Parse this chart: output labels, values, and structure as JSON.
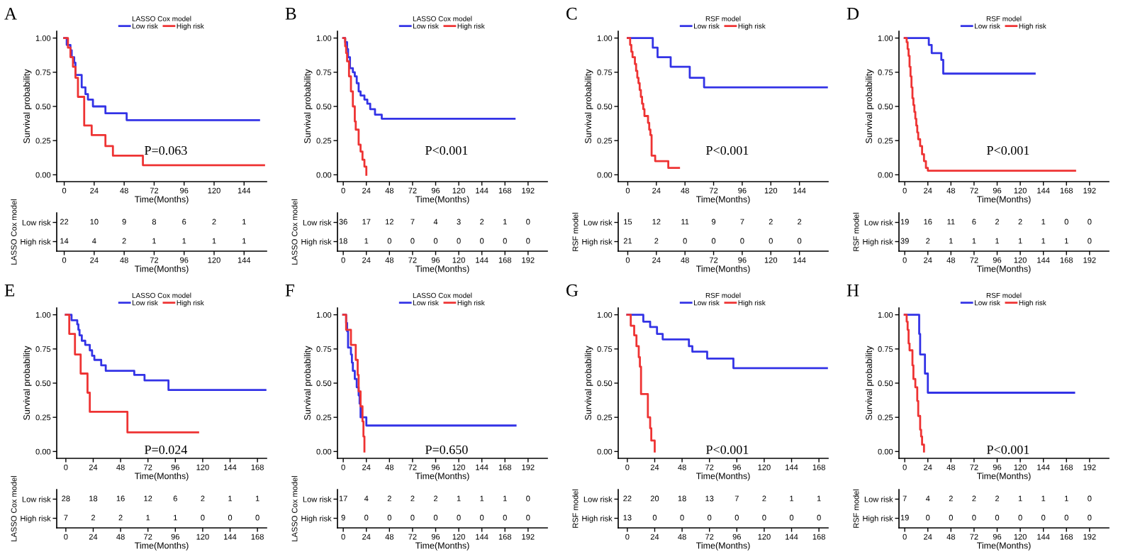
{
  "chart_data": [
    {
      "type": "step",
      "title": "A",
      "legend_title": "LASSO Cox model",
      "legend": "top",
      "xlabel": "Time(Months)",
      "ylabel": "Survival probability",
      "xlim": [
        -6,
        162
      ],
      "xticks": [
        0,
        24,
        48,
        72,
        96,
        120,
        144
      ],
      "ylim": [
        -0.05,
        1.05
      ],
      "yticks": [
        {
          "value": 0,
          "label": "0.00"
        },
        {
          "value": 0.25,
          "label": "0.25"
        },
        {
          "value": 0.5,
          "label": "0.50"
        },
        {
          "value": 0.75,
          "label": "0.75"
        },
        {
          "value": 1,
          "label": "1.00"
        }
      ],
      "annotations": [
        "P=0.063"
      ],
      "series": [
        {
          "name": "Low risk",
          "color": "#3333e6",
          "x": [
            0,
            2,
            5,
            6,
            8,
            9,
            14,
            17,
            19,
            23,
            33,
            50,
            156
          ],
          "values": [
            1,
            0.95,
            0.91,
            0.86,
            0.82,
            0.73,
            0.64,
            0.59,
            0.55,
            0.5,
            0.45,
            0.4,
            0.4
          ]
        },
        {
          "name": "High risk",
          "color": "#ee3333",
          "x": [
            0,
            3,
            5,
            7,
            9,
            11,
            16,
            22,
            33,
            39,
            63,
            160
          ],
          "values": [
            1,
            0.93,
            0.86,
            0.79,
            0.71,
            0.57,
            0.36,
            0.29,
            0.21,
            0.14,
            0.07,
            0.07
          ]
        }
      ]
    },
    {
      "type": "heatmap",
      "data_labels": true,
      "xlabel": "Time(Months)",
      "ylabel": "LASSO Cox model",
      "categories": [
        "0",
        "24",
        "48",
        "72",
        "96",
        "120",
        "144"
      ],
      "y_categories": [
        "Low risk",
        "High risk"
      ],
      "cells": [
        [
          22,
          10,
          9,
          8,
          6,
          2,
          1
        ],
        [
          14,
          4,
          2,
          1,
          1,
          1,
          1
        ]
      ]
    },
    {
      "type": "step",
      "title": "B",
      "legend_title": "LASSO Cox model",
      "legend": "top",
      "xlabel": "Time(Months)",
      "ylabel": "Survival probability",
      "xlim": [
        -6,
        212
      ],
      "xticks": [
        0,
        24,
        48,
        72,
        96,
        120,
        144,
        168,
        192
      ],
      "ylim": [
        -0.05,
        1.05
      ],
      "yticks": [
        {
          "value": 0,
          "label": "0.00"
        },
        {
          "value": 0.25,
          "label": "0.25"
        },
        {
          "value": 0.5,
          "label": "0.50"
        },
        {
          "value": 0.75,
          "label": "0.75"
        },
        {
          "value": 1,
          "label": "1.00"
        }
      ],
      "annotations": [
        "P<0.001"
      ],
      "series": [
        {
          "name": "Low risk",
          "color": "#3333e6",
          "x": [
            0,
            2,
            4,
            5,
            7,
            10,
            12,
            14,
            16,
            18,
            22,
            25,
            28,
            33,
            40,
            178
          ],
          "values": [
            1,
            0.97,
            0.92,
            0.86,
            0.78,
            0.75,
            0.72,
            0.67,
            0.61,
            0.58,
            0.55,
            0.52,
            0.48,
            0.44,
            0.41,
            0.41
          ]
        },
        {
          "name": "High risk",
          "color": "#ee3333",
          "x": [
            0,
            2,
            3,
            4,
            6,
            8,
            10,
            12,
            13,
            16,
            18,
            20,
            22,
            24
          ],
          "values": [
            1,
            0.94,
            0.89,
            0.83,
            0.72,
            0.61,
            0.5,
            0.39,
            0.33,
            0.22,
            0.17,
            0.11,
            0.06,
            0
          ]
        }
      ]
    },
    {
      "type": "heatmap",
      "data_labels": true,
      "xlabel": "Time(Months)",
      "ylabel": "LASSO Cox model",
      "categories": [
        "0",
        "24",
        "48",
        "72",
        "96",
        "120",
        "144",
        "168",
        "192"
      ],
      "y_categories": [
        "Low risk",
        "High risk"
      ],
      "cells": [
        [
          36,
          17,
          12,
          7,
          4,
          3,
          2,
          1,
          0
        ],
        [
          18,
          1,
          0,
          0,
          0,
          0,
          0,
          0,
          0
        ]
      ]
    },
    {
      "type": "step",
      "title": "C",
      "legend_title": "RSF model",
      "legend": "top",
      "xlabel": "Time(Months)",
      "ylabel": "Survival probability",
      "xlim": [
        -8,
        168
      ],
      "xticks": [
        0,
        24,
        48,
        72,
        96,
        120,
        144
      ],
      "ylim": [
        -0.05,
        1.05
      ],
      "yticks": [
        {
          "value": 0,
          "label": "0.00"
        },
        {
          "value": 0.25,
          "label": "0.25"
        },
        {
          "value": 0.5,
          "label": "0.50"
        },
        {
          "value": 0.75,
          "label": "0.75"
        },
        {
          "value": 1,
          "label": "1.00"
        }
      ],
      "annotations": [
        "P<0.001"
      ],
      "series": [
        {
          "name": "Low risk",
          "color": "#3333e6",
          "x": [
            0,
            21,
            25,
            36,
            52,
            64,
            167
          ],
          "values": [
            1,
            0.93,
            0.86,
            0.79,
            0.71,
            0.64,
            0.64
          ]
        },
        {
          "name": "High risk",
          "color": "#ee3333",
          "x": [
            0,
            2,
            3,
            4,
            6,
            7,
            8,
            9,
            10,
            11,
            12,
            13,
            14,
            17,
            18,
            19,
            20,
            23,
            34,
            43
          ],
          "values": [
            1,
            0.95,
            0.9,
            0.86,
            0.81,
            0.76,
            0.71,
            0.67,
            0.62,
            0.57,
            0.52,
            0.48,
            0.43,
            0.38,
            0.33,
            0.29,
            0.14,
            0.1,
            0.05,
            0.05
          ]
        }
      ]
    },
    {
      "type": "heatmap",
      "data_labels": true,
      "xlabel": "Time(Months)",
      "ylabel": "RSF model",
      "categories": [
        "0",
        "24",
        "48",
        "72",
        "96",
        "120",
        "144"
      ],
      "y_categories": [
        "Low risk",
        "High risk"
      ],
      "cells": [
        [
          15,
          12,
          11,
          9,
          7,
          2,
          2
        ],
        [
          21,
          2,
          0,
          0,
          0,
          0,
          0
        ]
      ]
    },
    {
      "type": "step",
      "title": "D",
      "legend_title": "RSF model",
      "legend": "top",
      "xlabel": "Time(Months)",
      "ylabel": "Survival probability",
      "xlim": [
        -6,
        212
      ],
      "xticks": [
        0,
        24,
        48,
        72,
        96,
        120,
        144,
        168,
        192
      ],
      "ylim": [
        -0.05,
        1.05
      ],
      "yticks": [
        {
          "value": 0,
          "label": "0.00"
        },
        {
          "value": 0.25,
          "label": "0.25"
        },
        {
          "value": 0.5,
          "label": "0.50"
        },
        {
          "value": 0.75,
          "label": "0.75"
        },
        {
          "value": 1,
          "label": "1.00"
        }
      ],
      "annotations": [
        "P<0.001"
      ],
      "series": [
        {
          "name": "Low risk",
          "color": "#3333e6",
          "x": [
            0,
            25,
            28,
            38,
            40,
            135
          ],
          "values": [
            1,
            0.95,
            0.89,
            0.84,
            0.74,
            0.74
          ]
        },
        {
          "name": "High risk",
          "color": "#ee3333",
          "x": [
            0,
            2,
            3,
            4,
            5,
            6,
            7,
            8,
            9,
            10,
            11,
            12,
            13,
            14,
            16,
            18,
            20,
            22,
            24,
            177
          ],
          "values": [
            1,
            0.97,
            0.92,
            0.87,
            0.79,
            0.72,
            0.64,
            0.56,
            0.51,
            0.46,
            0.41,
            0.36,
            0.31,
            0.26,
            0.21,
            0.15,
            0.1,
            0.05,
            0.03,
            0.03
          ]
        }
      ]
    },
    {
      "type": "heatmap",
      "data_labels": true,
      "xlabel": "Time(Months)",
      "ylabel": "RSF model",
      "categories": [
        "0",
        "24",
        "48",
        "72",
        "96",
        "120",
        "144",
        "168",
        "192"
      ],
      "y_categories": [
        "Low risk",
        "High risk"
      ],
      "cells": [
        [
          19,
          16,
          11,
          6,
          2,
          2,
          1,
          0,
          0
        ],
        [
          39,
          2,
          1,
          1,
          1,
          1,
          1,
          1,
          0
        ]
      ]
    },
    {
      "type": "step",
      "title": "E",
      "legend_title": "LASSO Cox model",
      "legend": "top",
      "xlabel": "Time(Months)",
      "ylabel": "Survival probability",
      "xlim": [
        -8,
        176
      ],
      "xticks": [
        0,
        24,
        48,
        72,
        96,
        120,
        144,
        168
      ],
      "ylim": [
        -0.05,
        1.05
      ],
      "yticks": [
        {
          "value": 0,
          "label": "0.00"
        },
        {
          "value": 0.25,
          "label": "0.25"
        },
        {
          "value": 0.5,
          "label": "0.50"
        },
        {
          "value": 0.75,
          "label": "0.75"
        },
        {
          "value": 1,
          "label": "1.00"
        }
      ],
      "annotations": [
        "P=0.024"
      ],
      "series": [
        {
          "name": "Low risk",
          "color": "#3333e6",
          "x": [
            0,
            5,
            10,
            11,
            12,
            14,
            17,
            21,
            23,
            25,
            31,
            35,
            60,
            69,
            90,
            175
          ],
          "values": [
            1,
            0.96,
            0.93,
            0.89,
            0.85,
            0.81,
            0.78,
            0.74,
            0.7,
            0.67,
            0.63,
            0.59,
            0.56,
            0.52,
            0.45,
            0.45
          ]
        },
        {
          "name": "High risk",
          "color": "#ee3333",
          "x": [
            0,
            3,
            8,
            13,
            19,
            21,
            54,
            116
          ],
          "values": [
            1,
            0.86,
            0.71,
            0.57,
            0.43,
            0.29,
            0.14,
            0.14
          ]
        }
      ]
    },
    {
      "type": "heatmap",
      "data_labels": true,
      "xlabel": "Time(Months)",
      "ylabel": "LASSO Cox model",
      "categories": [
        "0",
        "24",
        "48",
        "72",
        "96",
        "120",
        "144",
        "168"
      ],
      "y_categories": [
        "Low risk",
        "High risk"
      ],
      "cells": [
        [
          28,
          18,
          16,
          12,
          6,
          2,
          1,
          1
        ],
        [
          7,
          2,
          2,
          1,
          1,
          0,
          0,
          0
        ]
      ]
    },
    {
      "type": "step",
      "title": "F",
      "legend_title": "LASSO Cox model",
      "legend": "top",
      "xlabel": "Time(Months)",
      "ylabel": "Survival probability",
      "xlim": [
        -6,
        212
      ],
      "xticks": [
        0,
        24,
        48,
        72,
        96,
        120,
        144,
        168,
        192
      ],
      "ylim": [
        -0.05,
        1.05
      ],
      "yticks": [
        {
          "value": 0,
          "label": "0.00"
        },
        {
          "value": 0.25,
          "label": "0.25"
        },
        {
          "value": 0.5,
          "label": "0.50"
        },
        {
          "value": 0.75,
          "label": "0.75"
        },
        {
          "value": 1,
          "label": "1.00"
        }
      ],
      "annotations": [
        "P=0.650"
      ],
      "series": [
        {
          "name": "Low risk",
          "color": "#3333e6",
          "x": [
            0,
            3,
            4,
            5,
            8,
            9,
            10,
            12,
            14,
            16,
            17,
            18,
            24,
            179
          ],
          "values": [
            1,
            0.94,
            0.88,
            0.76,
            0.71,
            0.65,
            0.59,
            0.53,
            0.47,
            0.41,
            0.35,
            0.25,
            0.19,
            0.19
          ]
        },
        {
          "name": "High risk",
          "color": "#ee3333",
          "x": [
            0,
            3,
            8,
            13,
            15,
            16,
            18,
            20,
            21,
            22
          ],
          "values": [
            1,
            0.89,
            0.78,
            0.67,
            0.56,
            0.44,
            0.33,
            0.22,
            0.11,
            0
          ]
        }
      ]
    },
    {
      "type": "heatmap",
      "data_labels": true,
      "xlabel": "Time(Months)",
      "ylabel": "LASSO Cox model",
      "categories": [
        "0",
        "24",
        "48",
        "72",
        "96",
        "120",
        "144",
        "168",
        "192"
      ],
      "y_categories": [
        "Low risk",
        "High risk"
      ],
      "cells": [
        [
          17,
          4,
          2,
          2,
          2,
          1,
          1,
          1,
          0
        ],
        [
          9,
          0,
          0,
          0,
          0,
          0,
          0,
          0,
          0
        ]
      ]
    },
    {
      "type": "step",
      "title": "G",
      "legend_title": "RSF model",
      "legend": "top",
      "xlabel": "Time(Months)",
      "ylabel": "Survival probability",
      "xlim": [
        -8,
        176
      ],
      "xticks": [
        0,
        24,
        48,
        72,
        96,
        120,
        144,
        168
      ],
      "ylim": [
        -0.05,
        1.05
      ],
      "yticks": [
        {
          "value": 0,
          "label": "0.00"
        },
        {
          "value": 0.25,
          "label": "0.25"
        },
        {
          "value": 0.5,
          "label": "0.50"
        },
        {
          "value": 0.75,
          "label": "0.75"
        },
        {
          "value": 1,
          "label": "1.00"
        }
      ],
      "annotations": [
        "P<0.001"
      ],
      "series": [
        {
          "name": "Low risk",
          "color": "#3333e6",
          "x": [
            0,
            14,
            20,
            26,
            31,
            54,
            57,
            70,
            93,
            175
          ],
          "values": [
            1,
            0.95,
            0.91,
            0.86,
            0.82,
            0.77,
            0.73,
            0.68,
            0.61,
            0.61
          ]
        },
        {
          "name": "High risk",
          "color": "#ee3333",
          "x": [
            0,
            3,
            6,
            8,
            10,
            11,
            12,
            18,
            20,
            21,
            24
          ],
          "values": [
            1,
            0.92,
            0.85,
            0.77,
            0.69,
            0.62,
            0.42,
            0.25,
            0.17,
            0.08,
            0
          ]
        }
      ]
    },
    {
      "type": "heatmap",
      "data_labels": true,
      "xlabel": "Time(Months)",
      "ylabel": "RSF model",
      "categories": [
        "0",
        "24",
        "48",
        "72",
        "96",
        "120",
        "144",
        "168"
      ],
      "y_categories": [
        "Low risk",
        "High risk"
      ],
      "cells": [
        [
          22,
          20,
          18,
          13,
          7,
          2,
          1,
          1
        ],
        [
          13,
          0,
          0,
          0,
          0,
          0,
          0,
          0
        ]
      ]
    },
    {
      "type": "step",
      "title": "H",
      "legend_title": "RSF model",
      "legend": "top",
      "xlabel": "Time(Months)",
      "ylabel": "Survival probability",
      "xlim": [
        -6,
        212
      ],
      "xticks": [
        0,
        24,
        48,
        72,
        96,
        120,
        144,
        168,
        192
      ],
      "ylim": [
        -0.05,
        1.05
      ],
      "yticks": [
        {
          "value": 0,
          "label": "0.00"
        },
        {
          "value": 0.25,
          "label": "0.25"
        },
        {
          "value": 0.5,
          "label": "0.50"
        },
        {
          "value": 0.75,
          "label": "0.75"
        },
        {
          "value": 1,
          "label": "1.00"
        }
      ],
      "annotations": [
        "P<0.001"
      ],
      "series": [
        {
          "name": "Low risk",
          "color": "#3333e6",
          "x": [
            0,
            15,
            16,
            21,
            24,
            176
          ],
          "values": [
            1,
            0.86,
            0.71,
            0.57,
            0.43,
            0.43
          ]
        },
        {
          "name": "High risk",
          "color": "#ee3333",
          "x": [
            0,
            2,
            3,
            4,
            5,
            8,
            9,
            11,
            13,
            14,
            16,
            17,
            18,
            20
          ],
          "values": [
            1,
            0.95,
            0.89,
            0.79,
            0.74,
            0.63,
            0.53,
            0.47,
            0.37,
            0.26,
            0.16,
            0.11,
            0.05,
            0
          ]
        }
      ]
    },
    {
      "type": "heatmap",
      "data_labels": true,
      "xlabel": "Time(Months)",
      "ylabel": "RSF model",
      "categories": [
        "0",
        "24",
        "48",
        "72",
        "96",
        "120",
        "144",
        "168",
        "192"
      ],
      "y_categories": [
        "Low risk",
        "High risk"
      ],
      "cells": [
        [
          7,
          4,
          2,
          2,
          2,
          1,
          1,
          1,
          0
        ],
        [
          19,
          0,
          0,
          0,
          0,
          0,
          0,
          0,
          0
        ]
      ]
    }
  ]
}
